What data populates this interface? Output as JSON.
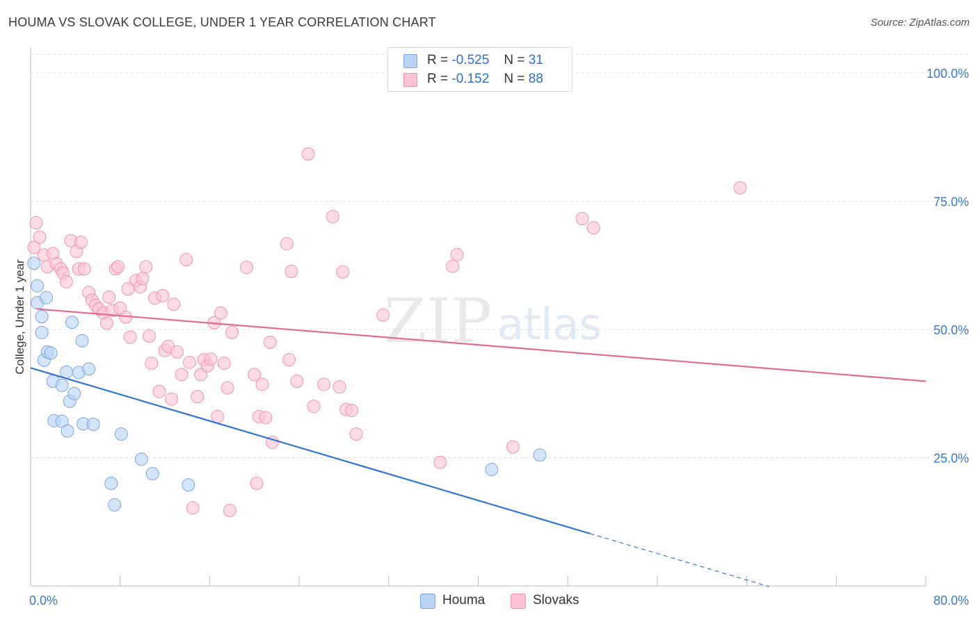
{
  "title": "HOUMA VS SLOVAK COLLEGE, UNDER 1 YEAR CORRELATION CHART",
  "source": "Source: ZipAtlas.com",
  "watermark": {
    "zip": "ZIP",
    "atlas": "atlas"
  },
  "colors": {
    "houma_fill": "#b9d3f5",
    "houma_stroke": "#7aa6e0",
    "houma_line": "#2f74d0",
    "slovak_fill": "#fbc3d4",
    "slovak_stroke": "#ee93b0",
    "slovak_line": "#e46a94",
    "tick_label": "#3b78c8",
    "grid": "#dddddd"
  },
  "legend": {
    "houma": {
      "r_label": "R =",
      "r_value": "-0.525",
      "n_label": "N =",
      "n_value": "31"
    },
    "slovaks": {
      "r_label": "R =",
      "r_value": "-0.152",
      "n_label": "N =",
      "n_value": "88"
    }
  },
  "bottom_legend": {
    "houma": "Houma",
    "slovaks": "Slovaks"
  },
  "chart_data": {
    "type": "scatter",
    "ylabel": "College, Under 1 year",
    "xlabel": "",
    "xlim": [
      0,
      80
    ],
    "ylim": [
      0,
      105
    ],
    "x_tick_labels": [
      {
        "value": 0,
        "label": "0.0%"
      },
      {
        "value": 80,
        "label": "80.0%"
      }
    ],
    "y_tick_labels": [
      {
        "value": 25,
        "label": "25.0%"
      },
      {
        "value": 50,
        "label": "50.0%"
      },
      {
        "value": 75,
        "label": "75.0%"
      },
      {
        "value": 100,
        "label": "100.0%"
      }
    ],
    "series": [
      {
        "name": "Houma",
        "r": -0.525,
        "n": 31,
        "trend": {
          "x0": 0,
          "y0": 42.5,
          "x1": 50,
          "y1": 10.2,
          "dash_to_x": 66
        },
        "points": [
          [
            0.3,
            62.9
          ],
          [
            0.6,
            58.5
          ],
          [
            0.6,
            55.2
          ],
          [
            1.0,
            52.5
          ],
          [
            1.0,
            49.4
          ],
          [
            1.4,
            56.2
          ],
          [
            1.2,
            44.0
          ],
          [
            1.5,
            45.6
          ],
          [
            1.8,
            45.4
          ],
          [
            2.0,
            39.9
          ],
          [
            2.1,
            32.2
          ],
          [
            2.8,
            39.1
          ],
          [
            2.8,
            32.1
          ],
          [
            3.2,
            41.7
          ],
          [
            3.3,
            30.2
          ],
          [
            3.5,
            36.0
          ],
          [
            3.7,
            51.4
          ],
          [
            3.9,
            37.5
          ],
          [
            4.3,
            41.6
          ],
          [
            4.6,
            47.8
          ],
          [
            4.7,
            31.6
          ],
          [
            5.2,
            42.3
          ],
          [
            5.6,
            31.5
          ],
          [
            7.2,
            20.0
          ],
          [
            7.5,
            15.8
          ],
          [
            8.1,
            29.6
          ],
          [
            9.9,
            24.7
          ],
          [
            10.9,
            21.9
          ],
          [
            14.1,
            19.7
          ],
          [
            41.2,
            22.7
          ],
          [
            45.5,
            25.5
          ]
        ]
      },
      {
        "name": "Slovaks",
        "r": -0.152,
        "n": 88,
        "trend": {
          "x0": 0.5,
          "y0": 54.0,
          "x1": 80,
          "y1": 39.9
        },
        "points": [
          [
            0.5,
            70.8
          ],
          [
            0.8,
            68.0
          ],
          [
            0.3,
            66.0
          ],
          [
            1.2,
            64.5
          ],
          [
            1.5,
            62.2
          ],
          [
            2.0,
            64.8
          ],
          [
            2.3,
            62.8
          ],
          [
            2.7,
            61.8
          ],
          [
            2.9,
            61.0
          ],
          [
            3.2,
            59.3
          ],
          [
            3.6,
            67.3
          ],
          [
            4.1,
            65.2
          ],
          [
            4.3,
            61.8
          ],
          [
            4.5,
            67.0
          ],
          [
            4.8,
            61.8
          ],
          [
            5.2,
            57.2
          ],
          [
            5.5,
            55.7
          ],
          [
            5.8,
            54.7
          ],
          [
            6.1,
            54.0
          ],
          [
            6.5,
            53.2
          ],
          [
            6.8,
            51.2
          ],
          [
            7.0,
            56.3
          ],
          [
            7.3,
            53.7
          ],
          [
            7.6,
            61.8
          ],
          [
            7.8,
            62.2
          ],
          [
            8.0,
            54.2
          ],
          [
            8.5,
            52.4
          ],
          [
            8.9,
            48.5
          ],
          [
            9.4,
            59.5
          ],
          [
            9.8,
            58.3
          ],
          [
            10.0,
            59.9
          ],
          [
            10.3,
            62.2
          ],
          [
            10.6,
            48.7
          ],
          [
            10.8,
            43.4
          ],
          [
            11.1,
            56.1
          ],
          [
            11.5,
            37.9
          ],
          [
            11.8,
            56.6
          ],
          [
            12.0,
            45.9
          ],
          [
            12.3,
            46.7
          ],
          [
            12.6,
            36.4
          ],
          [
            12.8,
            54.9
          ],
          [
            13.1,
            45.6
          ],
          [
            13.5,
            41.2
          ],
          [
            13.9,
            63.6
          ],
          [
            14.2,
            43.6
          ],
          [
            14.9,
            36.9
          ],
          [
            15.2,
            41.2
          ],
          [
            15.5,
            44.1
          ],
          [
            15.8,
            42.9
          ],
          [
            16.1,
            44.2
          ],
          [
            16.4,
            51.3
          ],
          [
            16.7,
            33.0
          ],
          [
            17.0,
            53.2
          ],
          [
            17.3,
            43.4
          ],
          [
            17.6,
            38.6
          ],
          [
            18.0,
            49.4
          ],
          [
            19.3,
            62.1
          ],
          [
            20.0,
            41.2
          ],
          [
            20.4,
            33.0
          ],
          [
            20.7,
            39.3
          ],
          [
            21.0,
            32.8
          ],
          [
            21.4,
            47.5
          ],
          [
            21.6,
            28.0
          ],
          [
            20.2,
            20.0
          ],
          [
            22.9,
            66.7
          ],
          [
            23.1,
            44.1
          ],
          [
            23.3,
            61.3
          ],
          [
            24.8,
            84.2
          ],
          [
            25.3,
            35.0
          ],
          [
            26.2,
            39.3
          ],
          [
            27.0,
            72.0
          ],
          [
            27.6,
            38.8
          ],
          [
            27.9,
            61.2
          ],
          [
            28.2,
            34.4
          ],
          [
            28.7,
            34.2
          ],
          [
            29.1,
            29.6
          ],
          [
            31.5,
            52.8
          ],
          [
            36.6,
            24.1
          ],
          [
            37.7,
            62.3
          ],
          [
            38.1,
            64.6
          ],
          [
            43.1,
            27.1
          ],
          [
            49.3,
            71.6
          ],
          [
            50.3,
            69.8
          ],
          [
            63.4,
            77.6
          ],
          [
            14.5,
            15.2
          ],
          [
            17.8,
            14.7
          ],
          [
            23.8,
            39.9
          ],
          [
            8.7,
            57.9
          ]
        ]
      }
    ]
  }
}
